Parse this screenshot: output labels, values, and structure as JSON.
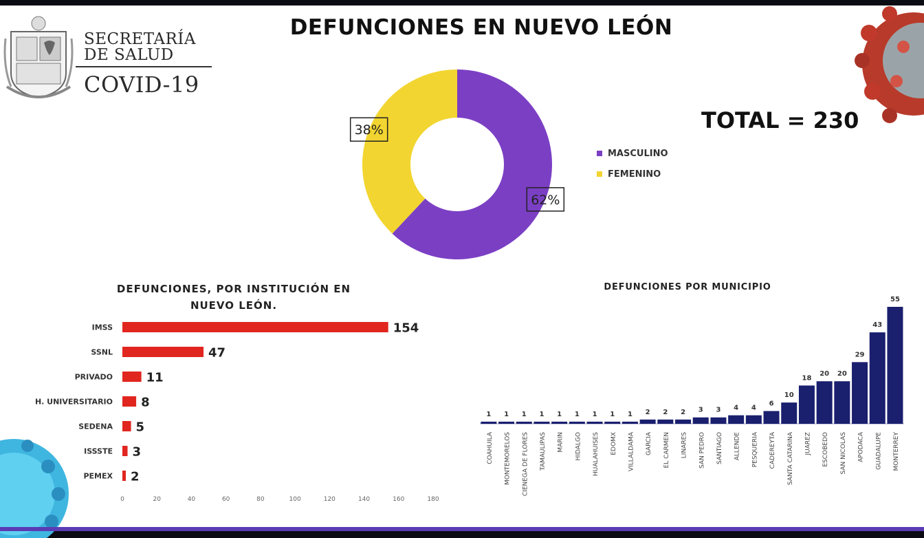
{
  "header": {
    "org_line1": "SECRETARÍA",
    "org_line2": "DE SALUD",
    "org_line3": "COVID-19",
    "title": "DEFUNCIONES EN NUEVO LEÓN",
    "total_label": "TOTAL = 230"
  },
  "colors": {
    "masculino": "#7b3fc4",
    "femenino": "#f2d530",
    "institucion_bar": "#e0261f",
    "municipio_bar": "#1a1f6e"
  },
  "chart_data": [
    {
      "type": "pie",
      "variant": "donut",
      "title": "",
      "categories": [
        "MASCULINO",
        "FEMENINO"
      ],
      "values": [
        62,
        38
      ],
      "value_labels": [
        "62%",
        "38%"
      ],
      "legend_placement": "right"
    },
    {
      "type": "bar",
      "orientation": "horizontal",
      "title": "DEFUNCIONES, POR INSTITUCIÓN EN NUEVO LEÓN.",
      "categories": [
        "IMSS",
        "SSNL",
        "PRIVADO",
        "H. UNIVERSITARIO",
        "SEDENA",
        "ISSSTE",
        "PEMEX"
      ],
      "values": [
        154,
        47,
        11,
        8,
        5,
        3,
        2
      ],
      "xlim": [
        0,
        180
      ],
      "xticks": [
        "0",
        "20",
        "40",
        "60",
        "80",
        "100",
        "120",
        "140",
        "160",
        "180"
      ]
    },
    {
      "type": "bar",
      "orientation": "vertical",
      "title": "DEFUNCIONES POR MUNICIPIO",
      "categories": [
        "COAHUILA",
        "MONTEMORELOS",
        "CIENEGA DE FLORES",
        "TAMAULIPAS",
        "MARIN",
        "HIDALGO",
        "HUALAHUISES",
        "EDOMX",
        "VILLALDAMA",
        "GARCIA",
        "EL CARMEN",
        "LINARES",
        "SAN PEDRO",
        "SANTIAGO",
        "ALLENDE",
        "PESQUERIA",
        "CADEREYTA",
        "SANTA CATARINA",
        "JUAREZ",
        "ESCOBEDO",
        "SAN NICOLAS",
        "APODACA",
        "GUADALUPE",
        "MONTERREY"
      ],
      "values": [
        1,
        1,
        1,
        1,
        1,
        1,
        1,
        1,
        1,
        2,
        2,
        2,
        3,
        3,
        4,
        4,
        6,
        10,
        18,
        20,
        20,
        29,
        43,
        55
      ],
      "ylim": [
        0,
        55
      ]
    }
  ]
}
